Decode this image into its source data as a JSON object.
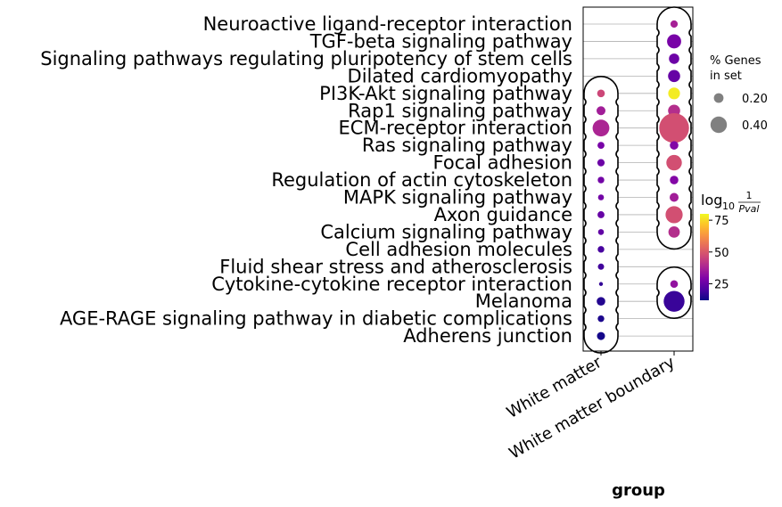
{
  "chart_data": {
    "type": "dotplot",
    "terms": [
      "Neuroactive ligand-receptor interaction",
      "TGF-beta signaling pathway",
      "Signaling pathways regulating pluripotency of stem cells",
      "Dilated cardiomyopathy",
      "PI3K-Akt signaling pathway",
      "Rap1 signaling pathway",
      "ECM-receptor interaction",
      "Ras signaling pathway",
      "Focal adhesion",
      "Regulation of actin cytoskeleton",
      "MAPK signaling pathway",
      "Axon guidance",
      "Calcium signaling pathway",
      "Cell adhesion molecules",
      "Fluid shear stress and atherosclerosis",
      "Cytokine-cytokine receptor interaction",
      "Melanoma",
      "AGE-RAGE signaling pathway in diabetic complications",
      "Adherens junction"
    ],
    "groups": [
      "White matter",
      "White matter boundary"
    ],
    "xlabel": "group",
    "points": [
      {
        "group": "White matter",
        "term": "PI3K-Akt signaling pathway",
        "pct": 0.13,
        "logp": 46
      },
      {
        "group": "White matter",
        "term": "Rap1 signaling pathway",
        "pct": 0.16,
        "logp": 36
      },
      {
        "group": "White matter",
        "term": "ECM-receptor interaction",
        "pct": 0.37,
        "logp": 38
      },
      {
        "group": "White matter",
        "term": "Ras signaling pathway",
        "pct": 0.11,
        "logp": 28
      },
      {
        "group": "White matter",
        "term": "Focal adhesion",
        "pct": 0.12,
        "logp": 26
      },
      {
        "group": "White matter",
        "term": "Regulation of actin cytoskeleton",
        "pct": 0.1,
        "logp": 27
      },
      {
        "group": "White matter",
        "term": "MAPK signaling pathway",
        "pct": 0.08,
        "logp": 27
      },
      {
        "group": "White matter",
        "term": "Axon guidance",
        "pct": 0.11,
        "logp": 25
      },
      {
        "group": "White matter",
        "term": "Calcium signaling pathway",
        "pct": 0.08,
        "logp": 24
      },
      {
        "group": "White matter",
        "term": "Cell adhesion molecules",
        "pct": 0.1,
        "logp": 20
      },
      {
        "group": "White matter",
        "term": "Fluid shear stress and atherosclerosis",
        "pct": 0.09,
        "logp": 19
      },
      {
        "group": "White matter",
        "term": "Cytokine-cytokine receptor interaction",
        "pct": 0.03,
        "logp": 17
      },
      {
        "group": "White matter",
        "term": "Melanoma",
        "pct": 0.15,
        "logp": 15
      },
      {
        "group": "White matter",
        "term": "AGE-RAGE signaling pathway in diabetic complications",
        "pct": 0.1,
        "logp": 14
      },
      {
        "group": "White matter",
        "term": "Adherens junction",
        "pct": 0.14,
        "logp": 13
      },
      {
        "group": "White matter boundary",
        "term": "Neuroactive ligand-receptor interaction",
        "pct": 0.12,
        "logp": 37
      },
      {
        "group": "White matter boundary",
        "term": "TGF-beta signaling pathway",
        "pct": 0.3,
        "logp": 28
      },
      {
        "group": "White matter boundary",
        "term": "Signaling pathways regulating pluripotency of stem cells",
        "pct": 0.2,
        "logp": 26
      },
      {
        "group": "White matter boundary",
        "term": "Dilated cardiomyopathy",
        "pct": 0.25,
        "logp": 25
      },
      {
        "group": "White matter boundary",
        "term": "PI3K-Akt signaling pathway",
        "pct": 0.24,
        "logp": 78
      },
      {
        "group": "White matter boundary",
        "term": "Rap1 signaling pathway",
        "pct": 0.25,
        "logp": 40
      },
      {
        "group": "White matter boundary",
        "term": "ECM-receptor interaction",
        "pct": 0.72,
        "logp": 48
      },
      {
        "group": "White matter boundary",
        "term": "Ras signaling pathway",
        "pct": 0.15,
        "logp": 30
      },
      {
        "group": "White matter boundary",
        "term": "Focal adhesion",
        "pct": 0.34,
        "logp": 48
      },
      {
        "group": "White matter boundary",
        "term": "Regulation of actin cytoskeleton",
        "pct": 0.15,
        "logp": 30
      },
      {
        "group": "White matter boundary",
        "term": "MAPK signaling pathway",
        "pct": 0.16,
        "logp": 36
      },
      {
        "group": "White matter boundary",
        "term": "Axon guidance",
        "pct": 0.38,
        "logp": 48
      },
      {
        "group": "White matter boundary",
        "term": "Calcium signaling pathway",
        "pct": 0.23,
        "logp": 40
      },
      {
        "group": "White matter boundary",
        "term": "Cytokine-cytokine receptor interaction",
        "pct": 0.13,
        "logp": 33
      },
      {
        "group": "White matter boundary",
        "term": "Melanoma",
        "pct": 0.48,
        "logp": 18
      }
    ],
    "size_legend": {
      "title_line1": "% Genes",
      "title_line2": "in set",
      "values": [
        0.2,
        0.4
      ],
      "labels": [
        "0.20",
        "0.40"
      ]
    },
    "colorbar": {
      "title_prefix": "log",
      "title_sub": "10",
      "title_num": "1",
      "title_den": "Pval",
      "ticks": [
        25,
        50,
        75
      ],
      "tick_labels": [
        "25",
        "50",
        "75"
      ],
      "range": [
        12,
        80
      ],
      "colormap": "plasma"
    },
    "grid": true
  }
}
